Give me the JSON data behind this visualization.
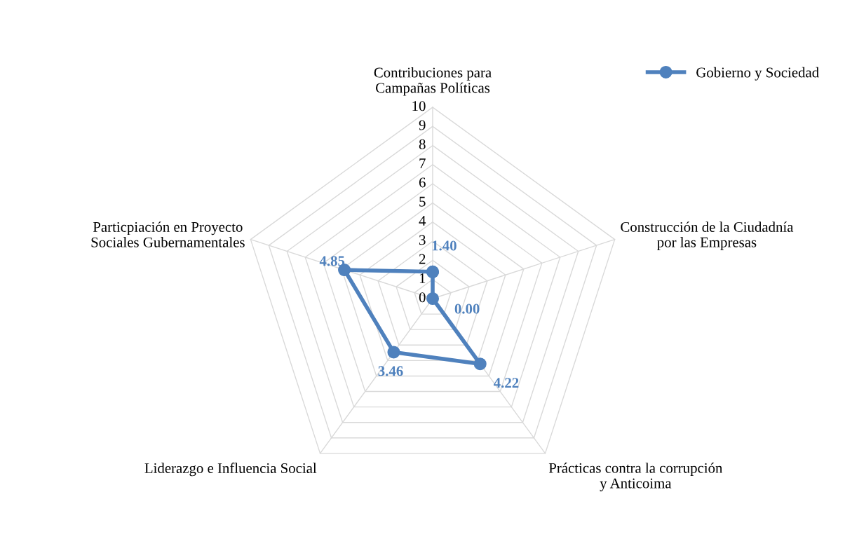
{
  "chart_data": {
    "type": "radar",
    "categories": [
      "Contribuciones para\nCampañas Políticas",
      "Construcción de la Ciudadnía\npor las Empresas",
      "Prácticas contra la corrupción\ny Anticoima",
      "Liderazgo e Influencia Social",
      "Particpiación en Proyecto\nSociales Gubernamentales"
    ],
    "series": [
      {
        "name": "Gobierno y Sociedad",
        "color": "#4f81bd",
        "values": [
          1.4,
          0.0,
          4.22,
          3.46,
          4.85
        ],
        "value_labels": [
          "1.40",
          "0.00",
          "4.22",
          "3.46",
          "4.85"
        ]
      }
    ],
    "ylim": [
      0,
      10
    ],
    "yticks": [
      0,
      1,
      2,
      3,
      4,
      5,
      6,
      7,
      8,
      9,
      10
    ],
    "grid": true,
    "legend": "top right",
    "marker": "circle"
  }
}
